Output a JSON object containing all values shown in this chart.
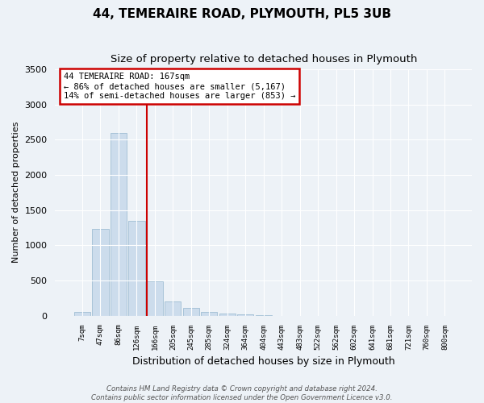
{
  "title": "44, TEMERAIRE ROAD, PLYMOUTH, PL5 3UB",
  "subtitle": "Size of property relative to detached houses in Plymouth",
  "bar_labels": [
    "7sqm",
    "47sqm",
    "86sqm",
    "126sqm",
    "166sqm",
    "205sqm",
    "245sqm",
    "285sqm",
    "324sqm",
    "364sqm",
    "404sqm",
    "443sqm",
    "483sqm",
    "522sqm",
    "562sqm",
    "602sqm",
    "641sqm",
    "681sqm",
    "721sqm",
    "760sqm",
    "800sqm"
  ],
  "bar_values": [
    50,
    1230,
    2590,
    1350,
    490,
    200,
    110,
    55,
    30,
    15,
    5,
    0,
    0,
    0,
    0,
    0,
    0,
    0,
    0,
    0,
    0
  ],
  "bar_color": "#ccdcec",
  "bar_edge_color": "#a0beD4",
  "property_line_index": 4,
  "property_line_color": "#cc0000",
  "xlabel": "Distribution of detached houses by size in Plymouth",
  "ylabel": "Number of detached properties",
  "ylim": [
    0,
    3500
  ],
  "yticks": [
    0,
    500,
    1000,
    1500,
    2000,
    2500,
    3000,
    3500
  ],
  "annotation_title": "44 TEMERAIRE ROAD: 167sqm",
  "annotation_line1": "← 86% of detached houses are smaller (5,167)",
  "annotation_line2": "14% of semi-detached houses are larger (853) →",
  "annotation_box_color": "#cc0000",
  "footer_line1": "Contains HM Land Registry data © Crown copyright and database right 2024.",
  "footer_line2": "Contains public sector information licensed under the Open Government Licence v3.0.",
  "background_color": "#edf2f7",
  "grid_color": "#ffffff",
  "title_fontsize": 11,
  "subtitle_fontsize": 9.5
}
